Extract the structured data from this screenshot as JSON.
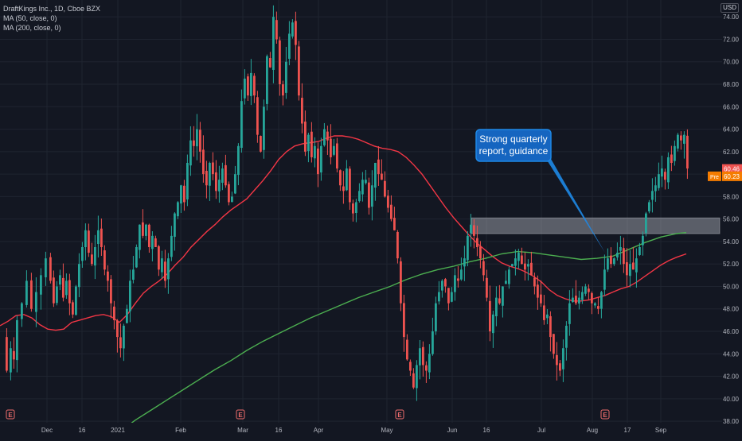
{
  "legend": {
    "symbol": "DraftKings Inc., 1D, Cboe BZX",
    "ma50": "MA (50, close, 0)",
    "ma200": "MA (200, close, 0)"
  },
  "currency": "USD",
  "annotation": {
    "line1": "Strong quarterly",
    "line2": "report, guidance"
  },
  "price_tags": {
    "last": "60.46",
    "pre_label": "Pre",
    "pre": "60.23"
  },
  "colors": {
    "up": "#26a69a",
    "down": "#ef5350",
    "ma50": "#f23645",
    "ma200": "#4caf50",
    "callout": "#1e88e5",
    "background": "#131722",
    "zone": "#b2b5be"
  },
  "icons": {
    "earnings_marker": "earnings-e-icon"
  },
  "chart_data": {
    "type": "candlestick",
    "x_ticks": [
      "Dec",
      "16",
      "2021",
      "Feb",
      "Mar",
      "16",
      "Apr",
      "May",
      "Jun",
      "16",
      "Jul",
      "Aug",
      "17",
      "Sep"
    ],
    "y_ticks": [
      "38.00",
      "40.00",
      "42.00",
      "44.00",
      "46.00",
      "48.00",
      "50.00",
      "52.00",
      "54.00",
      "56.00",
      "58.00",
      "60.00",
      "62.00",
      "64.00",
      "66.00",
      "68.00",
      "70.00",
      "72.00",
      "74.00"
    ],
    "ylim": [
      37.3,
      75.5
    ],
    "resistance_zone": [
      54.7,
      56.1
    ],
    "last_close": 60.46,
    "pre_market": 60.23,
    "earnings_markers": [
      "Nov 13 2020",
      "Feb 26 2021",
      "May 7 2021",
      "Aug 6 2021"
    ],
    "ma50": [
      [
        0,
        46.5
      ],
      [
        10,
        46.9
      ],
      [
        20,
        47.4
      ],
      [
        30,
        47.5
      ],
      [
        40,
        47.2
      ],
      [
        50,
        46.6
      ],
      [
        60,
        46.2
      ],
      [
        70,
        46.1
      ],
      [
        80,
        46.2
      ],
      [
        90,
        46.8
      ],
      [
        100,
        47.0
      ],
      [
        110,
        47.2
      ],
      [
        120,
        47.4
      ],
      [
        130,
        47.5
      ],
      [
        140,
        47.3
      ],
      [
        150,
        46.8
      ],
      [
        160,
        47.5
      ],
      [
        170,
        48.5
      ],
      [
        180,
        49.4
      ],
      [
        190,
        50.0
      ],
      [
        200,
        50.5
      ],
      [
        210,
        51.1
      ],
      [
        220,
        51.9
      ],
      [
        230,
        52.6
      ],
      [
        240,
        53.5
      ],
      [
        250,
        54.2
      ],
      [
        260,
        54.9
      ],
      [
        270,
        55.5
      ],
      [
        280,
        56.2
      ],
      [
        290,
        56.8
      ],
      [
        300,
        57.3
      ],
      [
        310,
        57.8
      ],
      [
        320,
        58.6
      ],
      [
        330,
        59.4
      ],
      [
        340,
        60.3
      ],
      [
        350,
        61.3
      ],
      [
        360,
        62.0
      ],
      [
        370,
        62.5
      ],
      [
        380,
        62.7
      ],
      [
        390,
        62.8
      ],
      [
        400,
        62.9
      ],
      [
        410,
        63.2
      ],
      [
        420,
        63.4
      ],
      [
        430,
        63.4
      ],
      [
        440,
        63.3
      ],
      [
        450,
        63.1
      ],
      [
        460,
        62.8
      ],
      [
        470,
        62.5
      ],
      [
        480,
        62.3
      ],
      [
        490,
        62.2
      ],
      [
        500,
        62.0
      ],
      [
        510,
        61.5
      ],
      [
        520,
        60.8
      ],
      [
        530,
        60.0
      ],
      [
        540,
        59.0
      ],
      [
        550,
        58.0
      ],
      [
        560,
        57.0
      ],
      [
        570,
        56.1
      ],
      [
        580,
        55.3
      ],
      [
        590,
        54.5
      ],
      [
        600,
        53.8
      ],
      [
        610,
        53.2
      ],
      [
        620,
        52.6
      ],
      [
        630,
        52.1
      ],
      [
        640,
        51.8
      ],
      [
        650,
        51.6
      ],
      [
        660,
        51.3
      ],
      [
        670,
        50.9
      ],
      [
        680,
        50.4
      ],
      [
        690,
        49.7
      ],
      [
        700,
        49.2
      ],
      [
        710,
        48.9
      ],
      [
        720,
        48.7
      ],
      [
        730,
        48.7
      ],
      [
        740,
        48.8
      ],
      [
        750,
        49.0
      ],
      [
        760,
        49.2
      ],
      [
        770,
        49.5
      ],
      [
        780,
        49.8
      ],
      [
        790,
        50.0
      ],
      [
        800,
        50.4
      ],
      [
        810,
        50.9
      ],
      [
        820,
        51.4
      ],
      [
        830,
        51.9
      ],
      [
        840,
        52.3
      ],
      [
        850,
        52.6
      ],
      [
        862,
        52.9
      ]
    ],
    "ma200": [
      [
        155,
        37.3
      ],
      [
        170,
        38.1
      ],
      [
        190,
        39.0
      ],
      [
        210,
        39.9
      ],
      [
        230,
        40.8
      ],
      [
        250,
        41.7
      ],
      [
        270,
        42.6
      ],
      [
        290,
        43.4
      ],
      [
        310,
        44.3
      ],
      [
        330,
        45.1
      ],
      [
        350,
        45.8
      ],
      [
        370,
        46.5
      ],
      [
        390,
        47.2
      ],
      [
        410,
        47.8
      ],
      [
        430,
        48.4
      ],
      [
        450,
        49.0
      ],
      [
        470,
        49.5
      ],
      [
        490,
        50.0
      ],
      [
        510,
        50.6
      ],
      [
        530,
        51.1
      ],
      [
        550,
        51.5
      ],
      [
        570,
        51.8
      ],
      [
        590,
        52.2
      ],
      [
        610,
        52.5
      ],
      [
        630,
        52.9
      ],
      [
        650,
        53.1
      ],
      [
        670,
        53.0
      ],
      [
        690,
        52.8
      ],
      [
        710,
        52.6
      ],
      [
        730,
        52.4
      ],
      [
        750,
        52.5
      ],
      [
        770,
        52.7
      ],
      [
        790,
        53.3
      ],
      [
        810,
        53.9
      ],
      [
        830,
        54.4
      ],
      [
        850,
        54.7
      ],
      [
        862,
        54.8
      ]
    ],
    "price_path": [
      [
        3,
        45.5
      ],
      [
        7,
        42.5
      ],
      [
        12,
        44.5
      ],
      [
        16,
        43.5
      ],
      [
        20,
        47.0
      ],
      [
        26,
        48.5
      ],
      [
        32,
        50.5
      ],
      [
        38,
        48.0
      ],
      [
        44,
        49.5
      ],
      [
        50,
        51.0
      ],
      [
        56,
        52.5
      ],
      [
        62,
        50.5
      ],
      [
        66,
        48.5
      ],
      [
        70,
        50.0
      ],
      [
        74,
        51.0
      ],
      [
        78,
        49.0
      ],
      [
        82,
        50.5
      ],
      [
        86,
        48.5
      ],
      [
        90,
        47.5
      ],
      [
        94,
        50.0
      ],
      [
        98,
        52.0
      ],
      [
        102,
        53.5
      ],
      [
        106,
        55.0
      ],
      [
        110,
        53.0
      ],
      [
        114,
        52.0
      ],
      [
        118,
        53.5
      ],
      [
        122,
        55.0
      ],
      [
        126,
        53.5
      ],
      [
        130,
        51.5
      ],
      [
        134,
        50.5
      ],
      [
        138,
        48.5
      ],
      [
        142,
        47.0
      ],
      [
        146,
        45.5
      ],
      [
        150,
        44.5
      ],
      [
        154,
        46.5
      ],
      [
        158,
        48.0
      ],
      [
        162,
        50.5
      ],
      [
        166,
        51.5
      ],
      [
        170,
        53.5
      ],
      [
        174,
        55.5
      ],
      [
        178,
        54.5
      ],
      [
        182,
        55.5
      ],
      [
        186,
        53.5
      ],
      [
        190,
        54.5
      ],
      [
        194,
        53.5
      ],
      [
        198,
        51.5
      ],
      [
        202,
        52.5
      ],
      [
        206,
        50.5
      ],
      [
        210,
        52.5
      ],
      [
        214,
        54.5
      ],
      [
        218,
        56.5
      ],
      [
        222,
        57.5
      ],
      [
        226,
        59.0
      ],
      [
        230,
        57.5
      ],
      [
        234,
        61.0
      ],
      [
        238,
        63.0
      ],
      [
        242,
        62.5
      ],
      [
        246,
        64.0
      ],
      [
        250,
        62.0
      ],
      [
        254,
        60.0
      ],
      [
        258,
        59.0
      ],
      [
        262,
        61.0
      ],
      [
        266,
        60.0
      ],
      [
        270,
        58.5
      ],
      [
        274,
        59.5
      ],
      [
        278,
        60.5
      ],
      [
        282,
        59.0
      ],
      [
        286,
        57.5
      ],
      [
        290,
        58.0
      ],
      [
        294,
        60.0
      ],
      [
        298,
        62.5
      ],
      [
        302,
        66.5
      ],
      [
        306,
        68.5
      ],
      [
        310,
        67.0
      ],
      [
        314,
        69.0
      ],
      [
        318,
        67.0
      ],
      [
        322,
        63.5
      ],
      [
        326,
        62.0
      ],
      [
        330,
        66.0
      ],
      [
        334,
        70.5
      ],
      [
        338,
        69.5
      ],
      [
        342,
        74.0
      ],
      [
        346,
        72.0
      ],
      [
        350,
        68.0
      ],
      [
        354,
        67.0
      ],
      [
        358,
        70.0
      ],
      [
        362,
        72.5
      ],
      [
        366,
        73.5
      ],
      [
        370,
        71.5
      ],
      [
        374,
        67.0
      ],
      [
        378,
        64.5
      ],
      [
        382,
        62.0
      ],
      [
        386,
        63.5
      ],
      [
        390,
        61.5
      ],
      [
        394,
        62.5
      ],
      [
        398,
        60.0
      ],
      [
        402,
        62.5
      ],
      [
        406,
        64.0
      ],
      [
        410,
        63.0
      ],
      [
        414,
        61.5
      ],
      [
        418,
        62.5
      ],
      [
        422,
        60.5
      ],
      [
        426,
        59.0
      ],
      [
        430,
        58.5
      ],
      [
        434,
        60.5
      ],
      [
        438,
        57.5
      ],
      [
        442,
        56.5
      ],
      [
        446,
        57.5
      ],
      [
        450,
        58.5
      ],
      [
        454,
        59.5
      ],
      [
        458,
        59.5
      ],
      [
        462,
        57.0
      ],
      [
        466,
        59.0
      ],
      [
        470,
        61.0
      ],
      [
        474,
        60.0
      ],
      [
        478,
        59.5
      ],
      [
        482,
        58.0
      ],
      [
        486,
        57.0
      ],
      [
        490,
        56.0
      ],
      [
        494,
        55.0
      ],
      [
        498,
        52.5
      ],
      [
        502,
        48.5
      ],
      [
        506,
        45.5
      ],
      [
        510,
        43.5
      ],
      [
        514,
        42.5
      ],
      [
        518,
        41.0
      ],
      [
        522,
        43.0
      ],
      [
        526,
        44.5
      ],
      [
        530,
        43.0
      ],
      [
        534,
        42.5
      ],
      [
        538,
        44.0
      ],
      [
        542,
        46.0
      ],
      [
        546,
        48.5
      ],
      [
        550,
        49.5
      ],
      [
        554,
        50.5
      ],
      [
        558,
        50.0
      ],
      [
        562,
        48.5
      ],
      [
        566,
        49.5
      ],
      [
        570,
        51.0
      ],
      [
        574,
        50.5
      ],
      [
        578,
        51.5
      ],
      [
        582,
        52.5
      ],
      [
        586,
        54.5
      ],
      [
        590,
        55.5
      ],
      [
        594,
        54.5
      ],
      [
        598,
        53.5
      ],
      [
        602,
        52.5
      ],
      [
        606,
        51.0
      ],
      [
        610,
        49.0
      ],
      [
        614,
        46.0
      ],
      [
        618,
        47.5
      ],
      [
        622,
        49.0
      ],
      [
        626,
        48.5
      ],
      [
        630,
        50.0
      ],
      [
        634,
        50.5
      ],
      [
        638,
        51.5
      ],
      [
        642,
        52.0
      ],
      [
        646,
        52.5
      ],
      [
        650,
        53.0
      ],
      [
        654,
        52.0
      ],
      [
        658,
        51.5
      ],
      [
        662,
        52.0
      ],
      [
        666,
        51.0
      ],
      [
        670,
        50.0
      ],
      [
        674,
        49.0
      ],
      [
        678,
        48.5
      ],
      [
        682,
        47.0
      ],
      [
        686,
        47.5
      ],
      [
        690,
        45.5
      ],
      [
        694,
        44.0
      ],
      [
        698,
        43.0
      ],
      [
        702,
        42.5
      ],
      [
        706,
        44.5
      ],
      [
        710,
        46.5
      ],
      [
        714,
        48.5
      ],
      [
        718,
        49.0
      ],
      [
        722,
        48.5
      ],
      [
        726,
        49.0
      ],
      [
        730,
        49.5
      ],
      [
        734,
        50.0
      ],
      [
        738,
        49.5
      ],
      [
        742,
        48.5
      ],
      [
        746,
        48.5
      ],
      [
        750,
        48.0
      ],
      [
        754,
        49.5
      ],
      [
        758,
        51.5
      ],
      [
        762,
        52.5
      ],
      [
        766,
        52.0
      ],
      [
        770,
        52.5
      ],
      [
        774,
        53.0
      ],
      [
        778,
        53.5
      ],
      [
        782,
        52.0
      ],
      [
        786,
        51.0
      ],
      [
        790,
        52.0
      ],
      [
        794,
        51.5
      ],
      [
        798,
        52.5
      ],
      [
        802,
        53.5
      ],
      [
        806,
        54.5
      ],
      [
        810,
        56.5
      ],
      [
        814,
        57.5
      ],
      [
        818,
        58.5
      ],
      [
        822,
        59.0
      ],
      [
        826,
        60.0
      ],
      [
        830,
        60.5
      ],
      [
        834,
        59.5
      ],
      [
        838,
        61.5
      ],
      [
        842,
        61.0
      ],
      [
        846,
        62.5
      ],
      [
        850,
        63.5
      ],
      [
        854,
        63.0
      ],
      [
        858,
        63.5
      ],
      [
        862,
        60.5
      ]
    ]
  }
}
